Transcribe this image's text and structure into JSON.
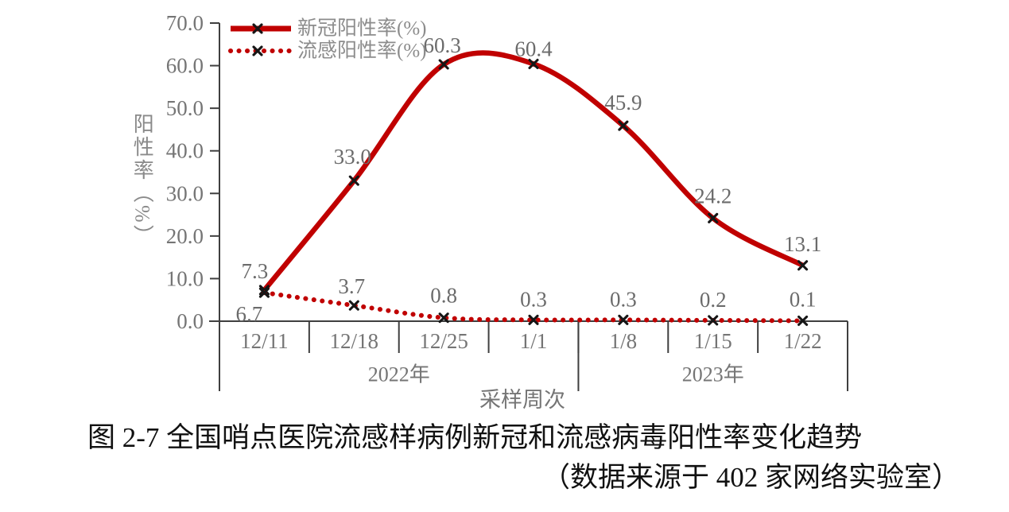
{
  "chart_data": {
    "type": "line",
    "smooth": true,
    "grid": false,
    "legend_position": "top-left",
    "categories": [
      "12/11",
      "12/18",
      "12/25",
      "1/1",
      "1/8",
      "1/15",
      "1/22"
    ],
    "year_groups": [
      {
        "label": "2022年",
        "start": 0,
        "end": 3
      },
      {
        "label": "2023年",
        "start": 4,
        "end": 6
      }
    ],
    "series": [
      {
        "name": "新冠阳性率(%)",
        "style": "solid",
        "marker": "x",
        "values": [
          7.3,
          33.0,
          60.3,
          60.4,
          45.9,
          24.2,
          13.1
        ],
        "labels": [
          "7.3",
          "33.0",
          "60.3",
          "60.4",
          "45.9",
          "24.2",
          "13.1"
        ]
      },
      {
        "name": "流感阳性率(%)",
        "style": "dotted",
        "marker": "x",
        "values": [
          6.7,
          3.7,
          0.8,
          0.3,
          0.3,
          0.2,
          0.1
        ],
        "labels": [
          "6.7",
          "3.7",
          "0.8",
          "0.3",
          "0.3",
          "0.2",
          "0.1"
        ]
      }
    ],
    "ylabel": "阳性率（%）",
    "xlabel": "采样周次",
    "ylim": [
      0,
      70
    ],
    "y_ticks": [
      "0.0",
      "10.0",
      "20.0",
      "30.0",
      "40.0",
      "50.0",
      "60.0",
      "70.0"
    ]
  },
  "colors": {
    "series_red": "#c00000",
    "marker_black": "#161616",
    "axis_line": "#3f3f3f",
    "axis_text": "#757575",
    "legend_text": "#8c8c8c",
    "data_label_text": "#6b6b6b",
    "caption_text": "#111111"
  },
  "caption": {
    "line1": "图 2-7 全国哨点医院流感样病例新冠和流感病毒阳性率变化趋势",
    "line2": "（数据来源于 402 家网络实验室）"
  }
}
